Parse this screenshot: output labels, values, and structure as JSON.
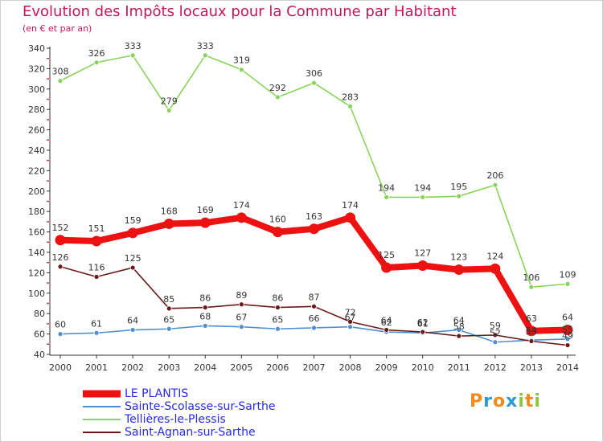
{
  "chart_data": {
    "type": "line",
    "title": "Evolution des Impôts locaux pour la Commune par Habitant",
    "subtitle": "(en € et par an)",
    "x": [
      "2000",
      "2001",
      "2002",
      "2003",
      "2004",
      "2005",
      "2006",
      "2007",
      "2008",
      "2009",
      "2010",
      "2011",
      "2012",
      "2013",
      "2014"
    ],
    "ylim": [
      40,
      340
    ],
    "yticks": [
      40,
      60,
      80,
      100,
      120,
      140,
      160,
      180,
      200,
      220,
      240,
      260,
      280,
      300,
      320,
      340
    ],
    "grid": false,
    "legend_position": "bottom-left",
    "series": [
      {
        "name": "LE PLANTIS",
        "color": "#ee1111",
        "values": [
          152,
          151,
          159,
          168,
          169,
          174,
          160,
          163,
          174,
          125,
          127,
          123,
          124,
          63,
          64
        ],
        "labels": [
          "152",
          "151",
          "159",
          "168",
          "169",
          "174",
          "160",
          "163",
          "174",
          "125",
          "127",
          "123",
          "124",
          "63",
          "64"
        ]
      },
      {
        "name": "Sainte-Scolasse-sur-Sarthe",
        "color": "#4f8fd0",
        "values": [
          60,
          61,
          64,
          65,
          68,
          67,
          65,
          66,
          67,
          62,
          61,
          64,
          52,
          54,
          55
        ],
        "labels": [
          "60",
          "61",
          "64",
          "65",
          "68",
          "67",
          "65",
          "66",
          "67",
          "62",
          "61",
          "64",
          "52",
          "54",
          "55"
        ]
      },
      {
        "name": "Tellières-le-Plessis",
        "color": "#88d45a",
        "values": [
          308,
          326,
          333,
          279,
          333,
          319,
          292,
          306,
          283,
          194,
          194,
          195,
          206,
          106,
          109
        ],
        "labels": [
          "308",
          "326",
          "333",
          "279",
          "333",
          "319",
          "292",
          "306",
          "283",
          "194",
          "194",
          "195",
          "206",
          "106",
          "109"
        ]
      },
      {
        "name": "Saint-Agnan-sur-Sarthe",
        "color": "#6b1a1a",
        "values": [
          126,
          116,
          125,
          85,
          86,
          89,
          86,
          87,
          72,
          64,
          62,
          58,
          59,
          53,
          49
        ],
        "labels": [
          "126",
          "116",
          "125",
          "85",
          "86",
          "89",
          "86",
          "87",
          "72",
          "64",
          "62",
          "58",
          "59",
          "53",
          "49"
        ]
      }
    ]
  },
  "logo": {
    "letters": [
      "P",
      "r",
      "o",
      "x",
      "i",
      "t",
      "i"
    ],
    "colors": [
      "#f08a1c",
      "#2a9ad8",
      "#f08a1c",
      "#2a9ad8",
      "#8cc63f",
      "#f08a1c",
      "#8cc63f"
    ]
  }
}
